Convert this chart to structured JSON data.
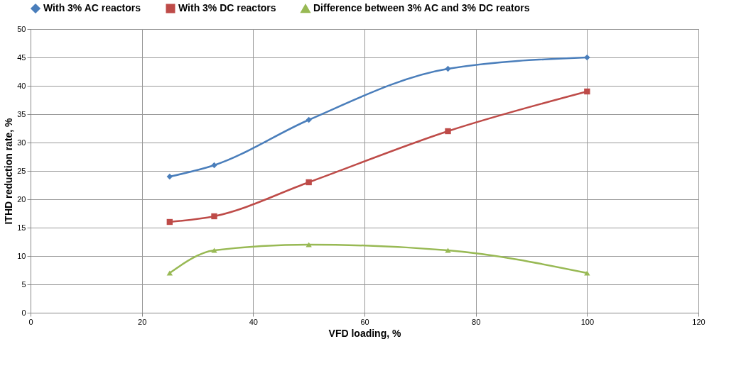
{
  "chart_data": {
    "type": "line",
    "xlabel": "VFD loading, %",
    "ylabel": "ITHD reduction rate, %",
    "x": [
      25,
      33,
      50,
      75,
      100
    ],
    "series": [
      {
        "name": "With 3% AC reactors",
        "color": "#4a7ebb",
        "marker": "diamond",
        "values": [
          24,
          26,
          34,
          43,
          45
        ]
      },
      {
        "name": "With 3% DC reactors",
        "color": "#be4b48",
        "marker": "square",
        "values": [
          16,
          17,
          23,
          32,
          39
        ]
      },
      {
        "name": "Difference between 3% AC and 3% DC reators",
        "color": "#98b954",
        "marker": "triangle",
        "values": [
          7,
          11,
          12,
          11,
          7
        ]
      }
    ],
    "xlim": [
      0,
      120
    ],
    "xticks": [
      0,
      20,
      40,
      60,
      80,
      100,
      120
    ],
    "ylim": [
      0,
      50
    ],
    "yticks": [
      0,
      5,
      10,
      15,
      20,
      25,
      30,
      35,
      40,
      45,
      50
    ],
    "grid": true,
    "legend": "top"
  }
}
